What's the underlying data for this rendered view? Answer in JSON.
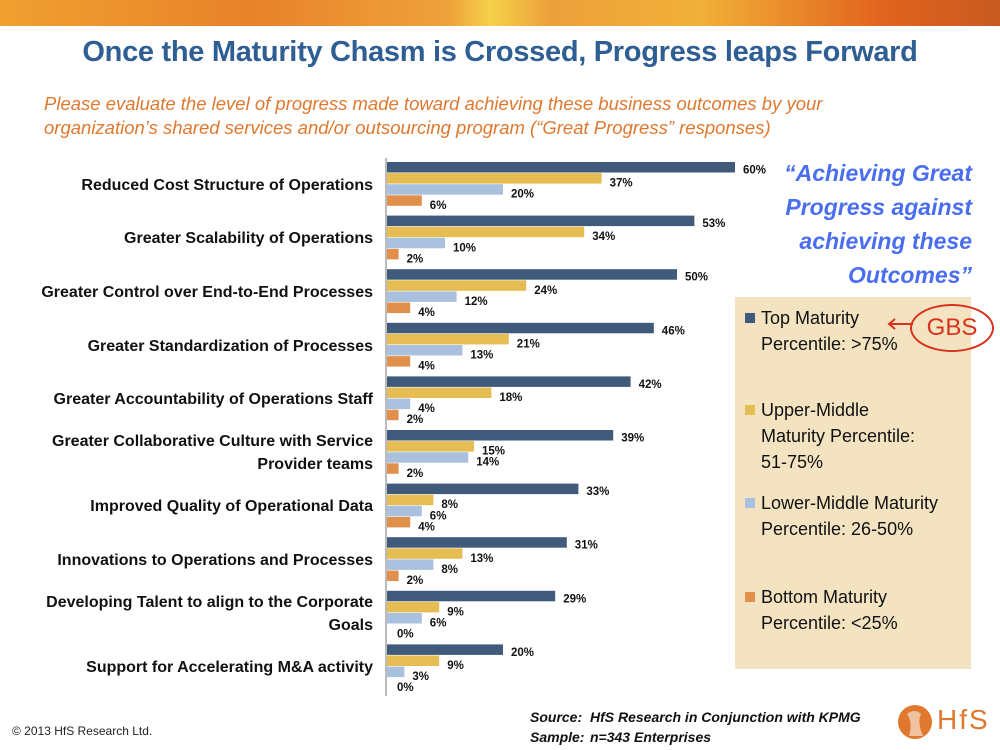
{
  "slide": {
    "title": "Once the Maturity Chasm is Crossed, Progress leaps Forward",
    "subtitle": "Please evaluate the level of progress made toward achieving these business outcomes by your organization’s shared services and/or outsourcing program (“Great Progress” responses)",
    "quote": "“Achieving Great Progress against achieving these Outcomes”",
    "callout": "GBS",
    "copyright": "© 2013 HfS Research Ltd.",
    "source_key": "Source:",
    "source_value": "HfS Research in Conjunction with KPMG",
    "sample_key": "Sample:",
    "sample_value": "n=343 Enterprises",
    "logo_text": "HfS"
  },
  "colors": {
    "top": "#3f5a7a",
    "upper_middle": "#e5bd52",
    "lower_middle": "#a9c1df",
    "bottom": "#e0904a",
    "title": "#2e5e93",
    "subtitle": "#e0782e",
    "quote": "#4a6ef0",
    "legend_bg": "#f4e3c0",
    "callout": "#d8321e"
  },
  "chart_data": {
    "type": "bar",
    "orientation": "horizontal",
    "title": "Once the Maturity Chasm is Crossed, Progress leaps Forward",
    "xlabel": "",
    "ylabel": "",
    "xlim": [
      0,
      60
    ],
    "grid": false,
    "legend_position": "right",
    "value_format": "percent",
    "categories": [
      "Reduced Cost Structure of Operations",
      "Greater Scalability of Operations",
      "Greater Control over End-to-End Processes",
      "Greater Standardization of Processes",
      "Greater Accountability of Operations Staff",
      "Greater Collaborative Culture with Service Provider teams",
      "Improved Quality of Operational Data",
      "Innovations to Operations and Processes",
      "Developing Talent to align to the Corporate Goals",
      "Support for Accelerating M&A activity"
    ],
    "series": [
      {
        "name": "Top Maturity Percentile: >75%",
        "color": "#3f5a7a",
        "values": [
          60,
          53,
          50,
          46,
          42,
          39,
          33,
          31,
          29,
          20
        ]
      },
      {
        "name": "Upper-Middle Maturity Percentile: 51-75%",
        "color": "#e5bd52",
        "values": [
          37,
          34,
          24,
          21,
          18,
          15,
          8,
          13,
          9,
          9
        ]
      },
      {
        "name": "Lower-Middle Maturity Percentile: 26-50%",
        "color": "#a9c1df",
        "values": [
          20,
          10,
          12,
          13,
          4,
          14,
          6,
          8,
          6,
          3
        ]
      },
      {
        "name": "Bottom Maturity Percentile: <25%",
        "color": "#e0904a",
        "values": [
          6,
          2,
          4,
          4,
          2,
          2,
          4,
          2,
          0,
          0
        ]
      }
    ]
  },
  "category_lines": [
    [
      "Reduced Cost Structure of Operations"
    ],
    [
      "Greater Scalability of Operations"
    ],
    [
      "Greater Control over End-to-End Processes"
    ],
    [
      "Greater Standardization of Processes"
    ],
    [
      "Greater Accountability of Operations Staff"
    ],
    [
      "Greater Collaborative Culture with Service",
      "Provider teams"
    ],
    [
      "Improved Quality of Operational Data"
    ],
    [
      "Innovations to Operations and Processes"
    ],
    [
      "Developing Talent to align to the Corporate",
      "Goals"
    ],
    [
      "Support for Accelerating M&A activity"
    ]
  ],
  "legend": [
    {
      "line1": "Top Maturity",
      "line2": "Percentile:  >75%",
      "line3": ""
    },
    {
      "line1": "Upper-Middle",
      "line2": "Maturity Percentile:",
      "line3": "51-75%"
    },
    {
      "line1": "Lower-Middle Maturity",
      "line2": "Percentile: 26-50%",
      "line3": ""
    },
    {
      "line1": "Bottom Maturity",
      "line2": "Percentile: <25%",
      "line3": ""
    }
  ]
}
